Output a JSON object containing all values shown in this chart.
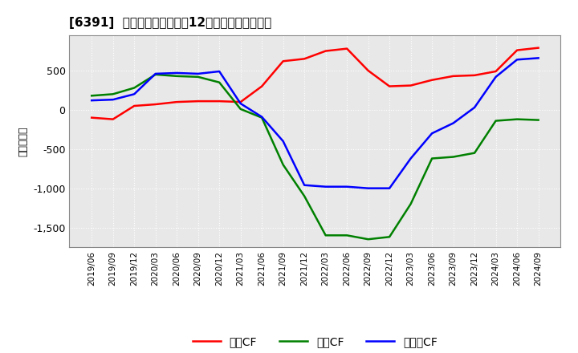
{
  "title": "[6391]  キャッシュフローの12か月移動合計の推移",
  "ylabel": "（百万円）",
  "x_labels": [
    "2019/06",
    "2019/09",
    "2019/12",
    "2020/03",
    "2020/06",
    "2020/09",
    "2020/12",
    "2021/03",
    "2021/06",
    "2021/09",
    "2021/12",
    "2022/03",
    "2022/06",
    "2022/09",
    "2022/12",
    "2023/03",
    "2023/06",
    "2023/09",
    "2023/12",
    "2024/03",
    "2024/06",
    "2024/09"
  ],
  "operating_cf": [
    -100,
    -120,
    50,
    70,
    100,
    110,
    110,
    100,
    300,
    620,
    650,
    750,
    780,
    500,
    300,
    310,
    380,
    430,
    440,
    490,
    760,
    790
  ],
  "investing_cf": [
    180,
    200,
    280,
    450,
    430,
    420,
    350,
    10,
    -100,
    -700,
    -1100,
    -1600,
    -1600,
    -1650,
    -1620,
    -1200,
    -620,
    -600,
    -550,
    -140,
    -120,
    -130
  ],
  "free_cf": [
    120,
    130,
    200,
    460,
    470,
    460,
    490,
    80,
    -90,
    -400,
    -960,
    -980,
    -980,
    -1000,
    -1000,
    -620,
    -300,
    -170,
    30,
    420,
    640,
    660
  ],
  "operating_color": "#ff0000",
  "investing_color": "#008000",
  "free_color": "#0000ff",
  "ylim": [
    -1750,
    950
  ],
  "yticks": [
    500,
    0,
    -500,
    -1000,
    -1500
  ],
  "plot_bg_color": "#e8e8e8",
  "background_color": "#ffffff",
  "legend_labels": [
    "営業CF",
    "投資CF",
    "フリーCF"
  ],
  "line_width": 1.8,
  "grid_color": "#ffffff",
  "grid_style": "dotted"
}
